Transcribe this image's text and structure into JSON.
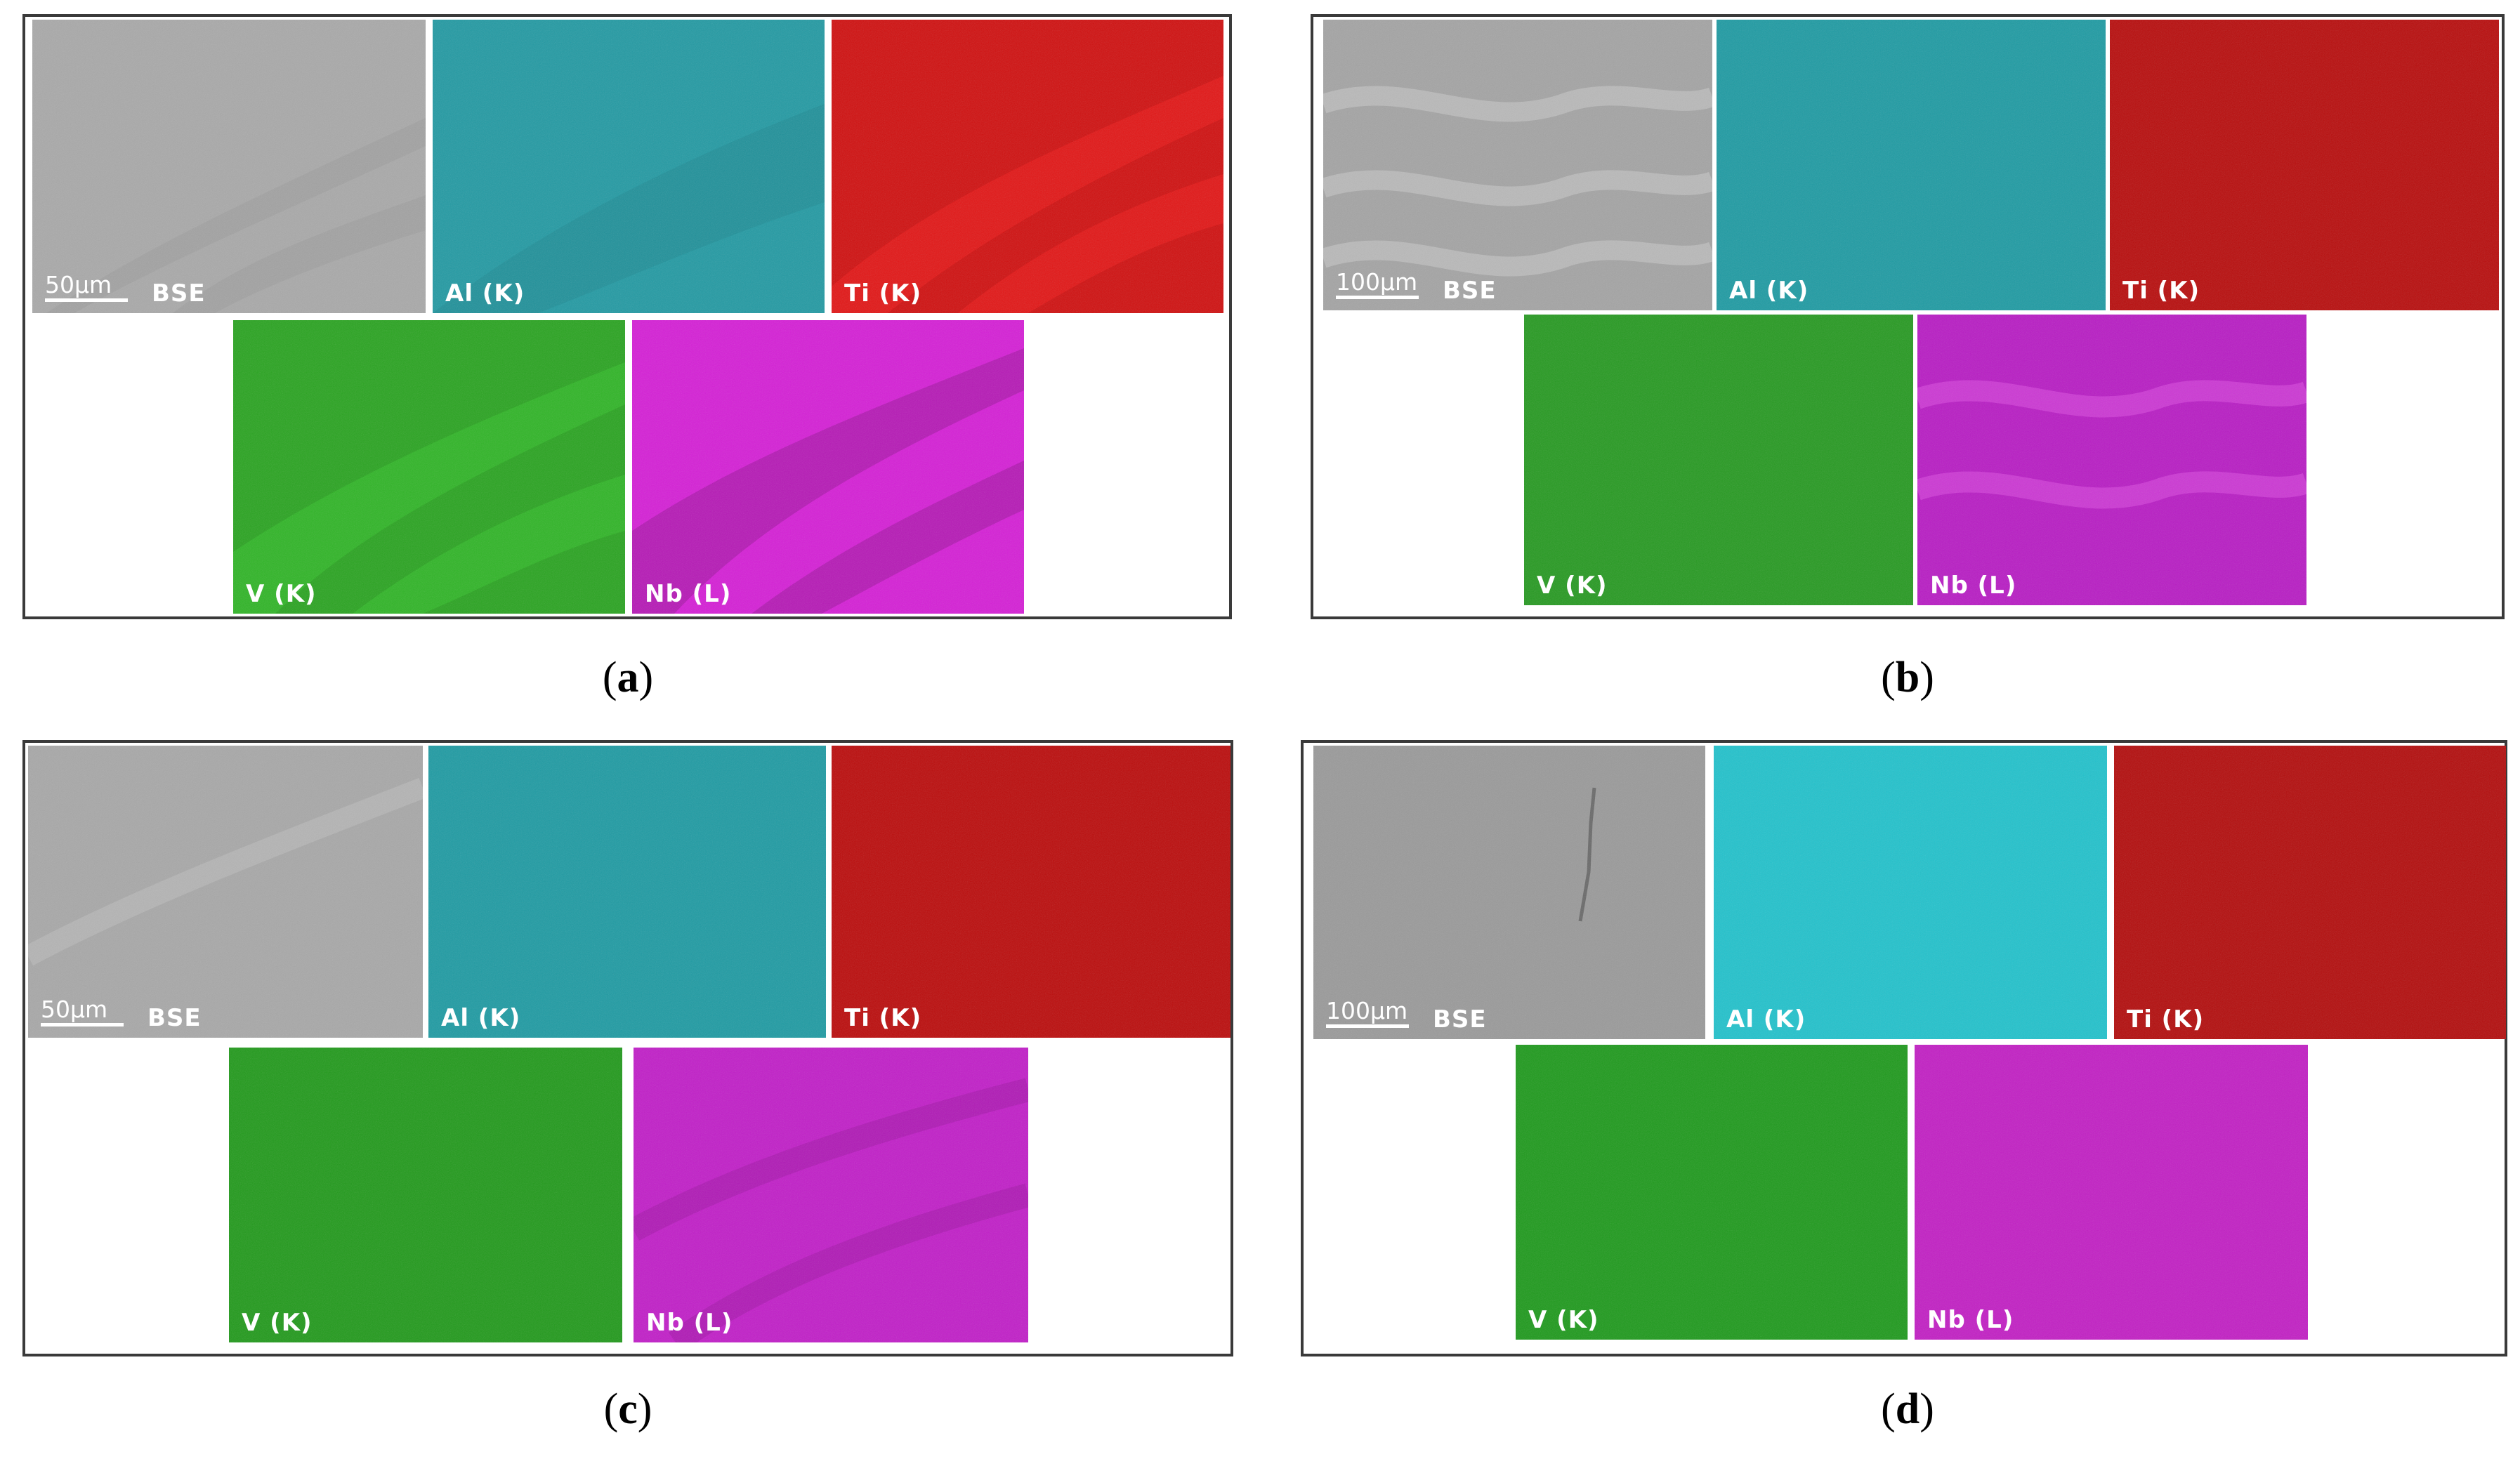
{
  "figures": [
    {
      "id": "a",
      "caption_letter": "a",
      "scale": "50µm",
      "tiles": {
        "bse": {
          "label": "BSE",
          "color": "#a9a9a9",
          "pattern": "bands-gray"
        },
        "al": {
          "label": "Al (K)",
          "color": "#239aa3"
        },
        "ti": {
          "label": "Ti (K)",
          "color": "#d01010"
        },
        "v": {
          "label": "V (K)",
          "color": "#2aa421"
        },
        "nb": {
          "label": "Nb (L)",
          "color": "#d51fd6"
        }
      }
    },
    {
      "id": "b",
      "caption_letter": "b",
      "scale": "100µm",
      "tiles": {
        "bse": {
          "label": "BSE",
          "color": "#a4a4a4"
        },
        "al": {
          "label": "Al (K)",
          "color": "#1f9ba3"
        },
        "ti": {
          "label": "Ti (K)",
          "color": "#b80d0d"
        },
        "v": {
          "label": "V (K)",
          "color": "#279a22"
        },
        "nb": {
          "label": "Nb (L)",
          "color": "#b81cc4"
        }
      }
    },
    {
      "id": "c",
      "caption_letter": "c",
      "scale": "50µm",
      "tiles": {
        "bse": {
          "label": "BSE",
          "color": "#a8a8a8"
        },
        "al": {
          "label": "Al (K)",
          "color": "#1f9ba3"
        },
        "ti": {
          "label": "Ti (K)",
          "color": "#bb0c0c"
        },
        "v": {
          "label": "V (K)",
          "color": "#229a1c"
        },
        "nb": {
          "label": "Nb (L)",
          "color": "#c11ec8"
        }
      }
    },
    {
      "id": "d",
      "caption_letter": "d",
      "scale": "100µm",
      "tiles": {
        "bse": {
          "label": "BSE",
          "color": "#9a9a9a"
        },
        "al": {
          "label": "Al (K)",
          "color": "#22c2cc"
        },
        "ti": {
          "label": "Ti (K)",
          "color": "#b30d0d"
        },
        "v": {
          "label": "V (K)",
          "color": "#1f9a1d"
        },
        "nb": {
          "label": "Nb (L)",
          "color": "#c21fc4"
        }
      }
    }
  ]
}
